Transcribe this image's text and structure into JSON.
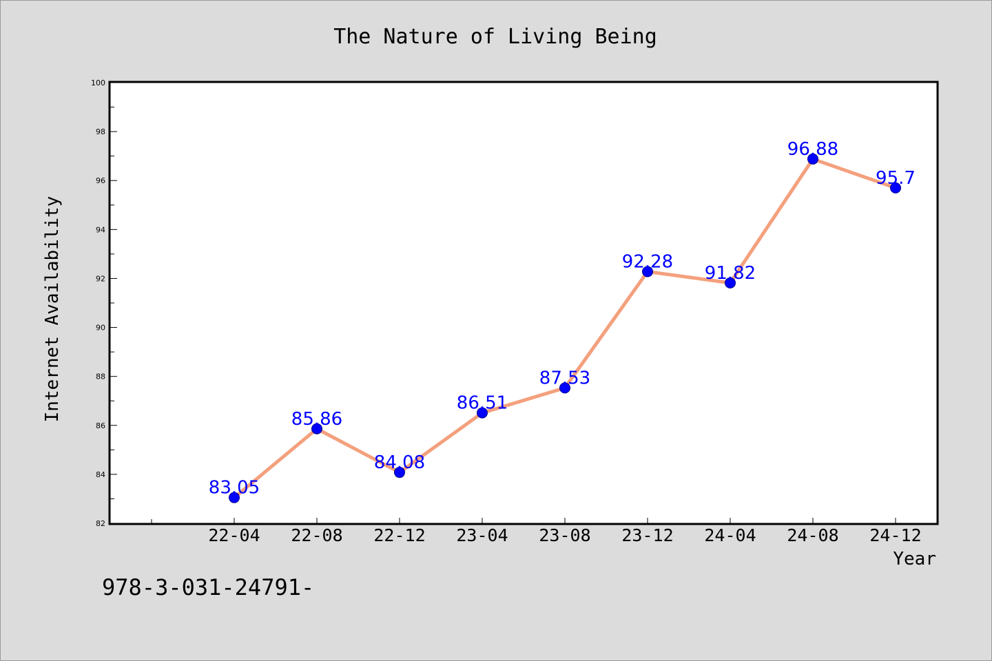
{
  "footer_text": "978-3-031-24791-",
  "colors": {
    "background": "#dcdcdc",
    "plot_background": "#ffffff",
    "line": "#f4a07d",
    "marker": "#0000ff",
    "data_label": "#0000ff"
  },
  "chart_data": {
    "type": "line",
    "title": "The Nature of Living Being",
    "xlabel": "Year",
    "ylabel": "Internet Availability",
    "x": [
      "22-04",
      "22-08",
      "22-12",
      "23-04",
      "23-08",
      "23-12",
      "24-04",
      "24-08",
      "24-12"
    ],
    "series": [
      {
        "values": [
          83.05,
          85.86,
          84.08,
          86.51,
          87.53,
          92.28,
          91.82,
          96.88,
          95.7
        ],
        "data_labels": [
          "83.05",
          "85.86",
          "84.08",
          "86.51",
          "87.53",
          "92.28",
          "91.82",
          "96.88",
          "95.7"
        ]
      }
    ],
    "ylim": [
      82,
      100
    ],
    "y_ticks": [
      82,
      84,
      86,
      88,
      90,
      92,
      94,
      96,
      98,
      100
    ],
    "y_tick_labels": [
      "82",
      "84",
      "86",
      "88",
      "90",
      "92",
      "94",
      "96",
      "98",
      "100"
    ],
    "grid": false,
    "legend": "none"
  }
}
